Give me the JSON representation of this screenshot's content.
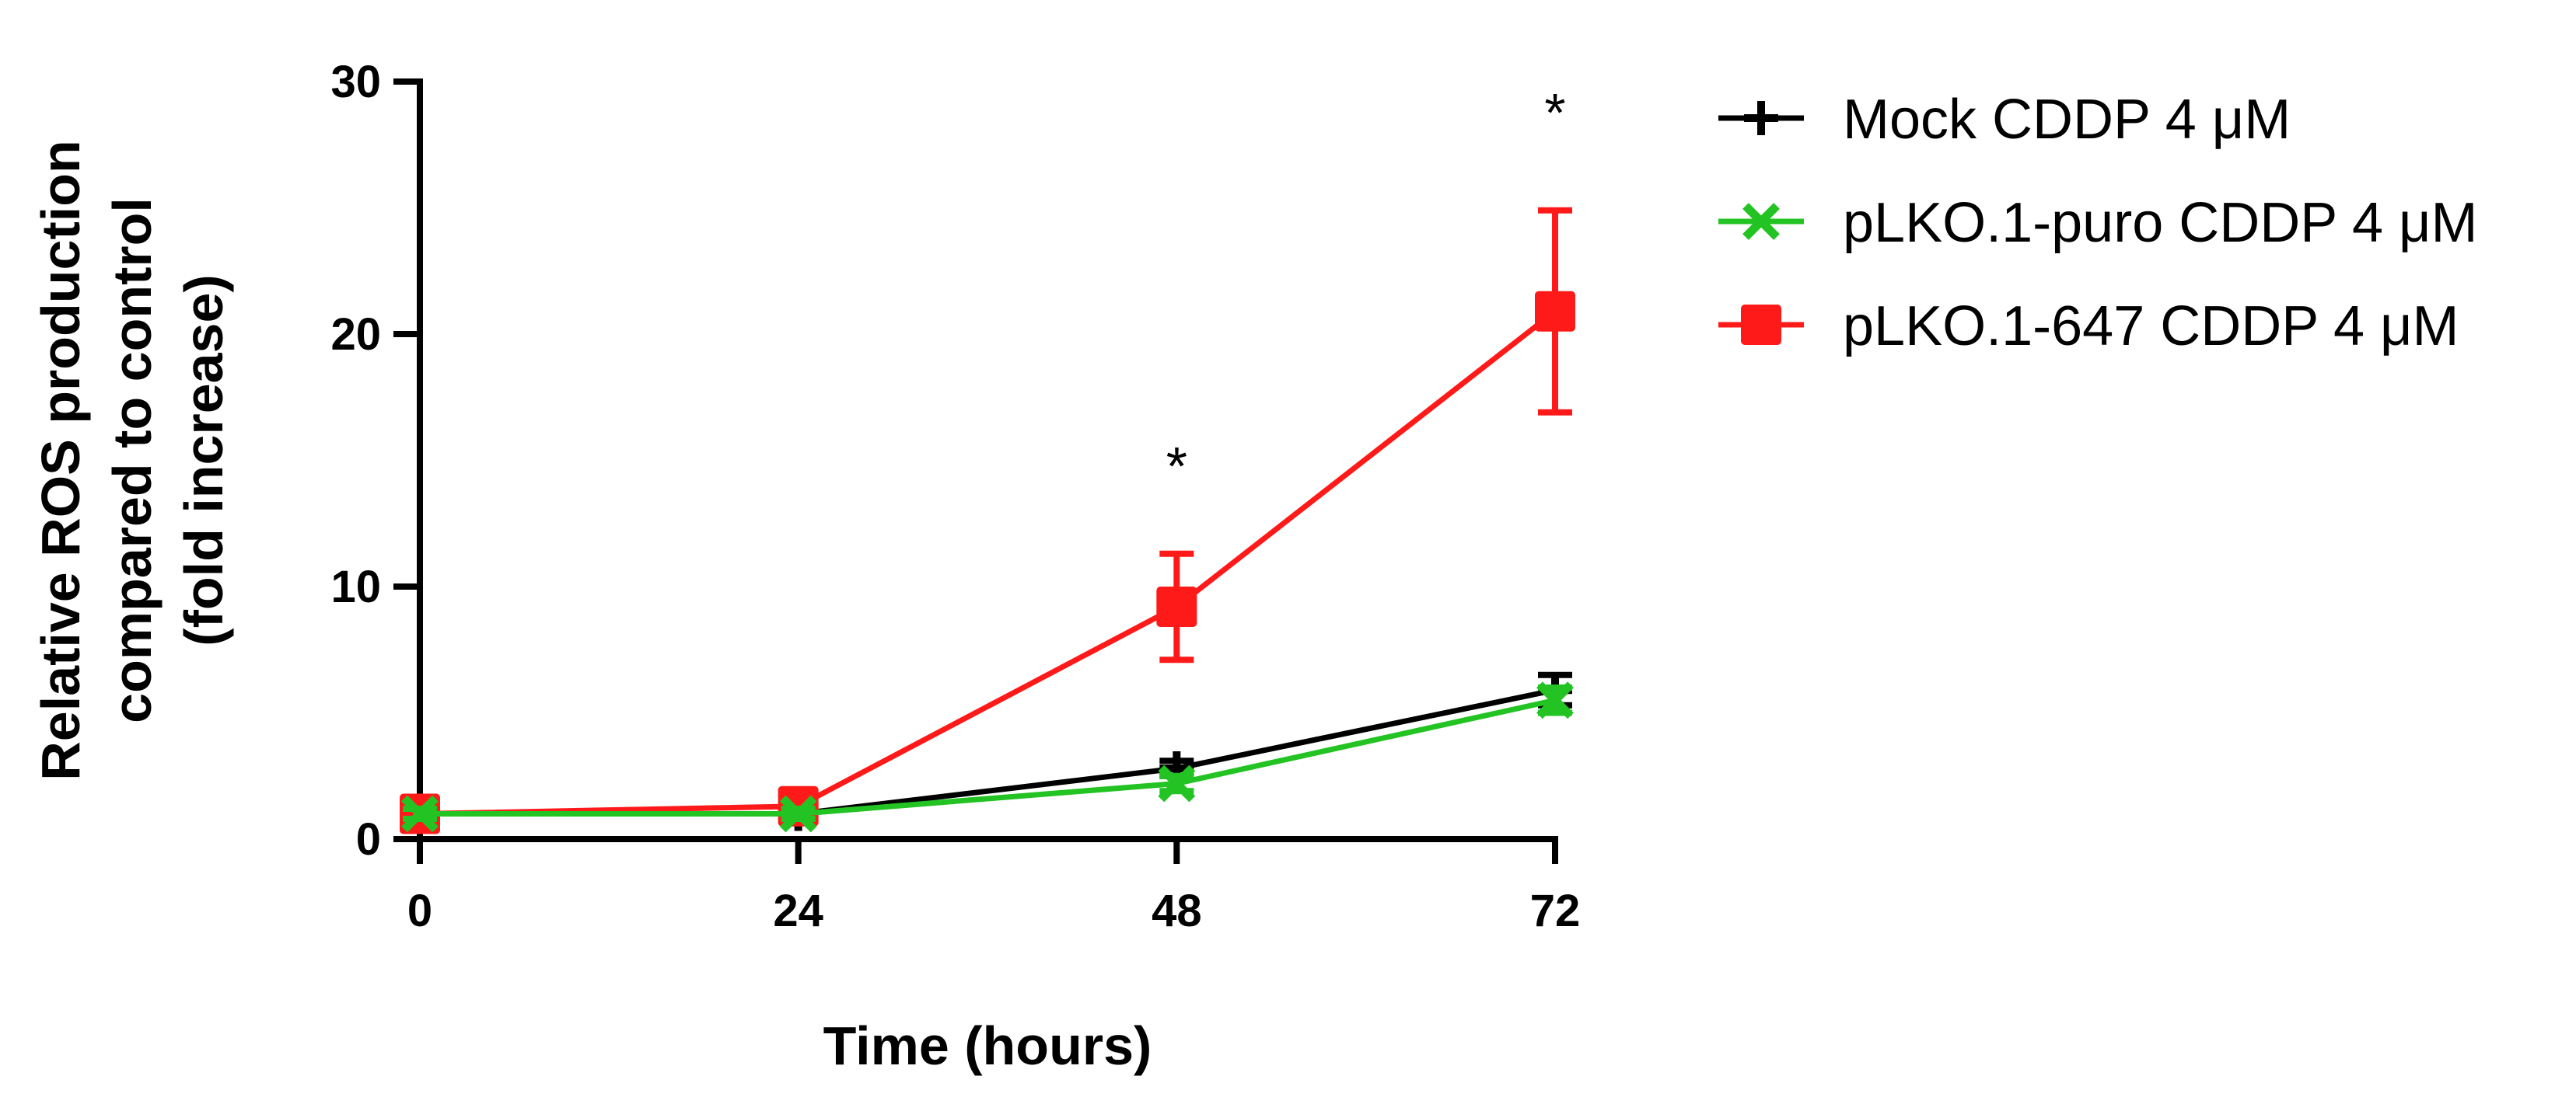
{
  "chart_data": {
    "type": "line",
    "title": "",
    "xlabel": "Time (hours)",
    "ylabel": [
      "Relative ROS production",
      "compared to control",
      "(fold increase)"
    ],
    "x": [
      0,
      24,
      48,
      72
    ],
    "xticks": [
      "0",
      "24",
      "48",
      "72"
    ],
    "xlim": [
      0,
      72
    ],
    "ylim": [
      0,
      30
    ],
    "yticks": [
      "0",
      "10",
      "20",
      "30"
    ],
    "grid": false,
    "legend_position": "top-right",
    "series": [
      {
        "name": "Mock CDDP 4 μM",
        "color": "#000000",
        "marker": "plus",
        "values": [
          1.0,
          1.0,
          2.8,
          5.9
        ],
        "error": [
          0.2,
          0.2,
          0.3,
          0.6
        ]
      },
      {
        "name": "pLKO.1-puro CDDP 4 μM",
        "color": "#22c322",
        "marker": "x",
        "values": [
          1.0,
          1.0,
          2.2,
          5.5
        ],
        "error": [
          0.2,
          0.2,
          0.3,
          0.5
        ]
      },
      {
        "name": "pLKO.1-647 CDDP 4 μM",
        "color": "#ff1a1a",
        "marker": "square",
        "values": [
          1.0,
          1.3,
          9.2,
          20.9
        ],
        "error": [
          0.2,
          0.3,
          2.1,
          4.0
        ]
      }
    ],
    "annotations": [
      {
        "text": "*",
        "x": 48,
        "y": 15.2
      },
      {
        "text": "*",
        "x": 72,
        "y": 29.2
      }
    ]
  }
}
